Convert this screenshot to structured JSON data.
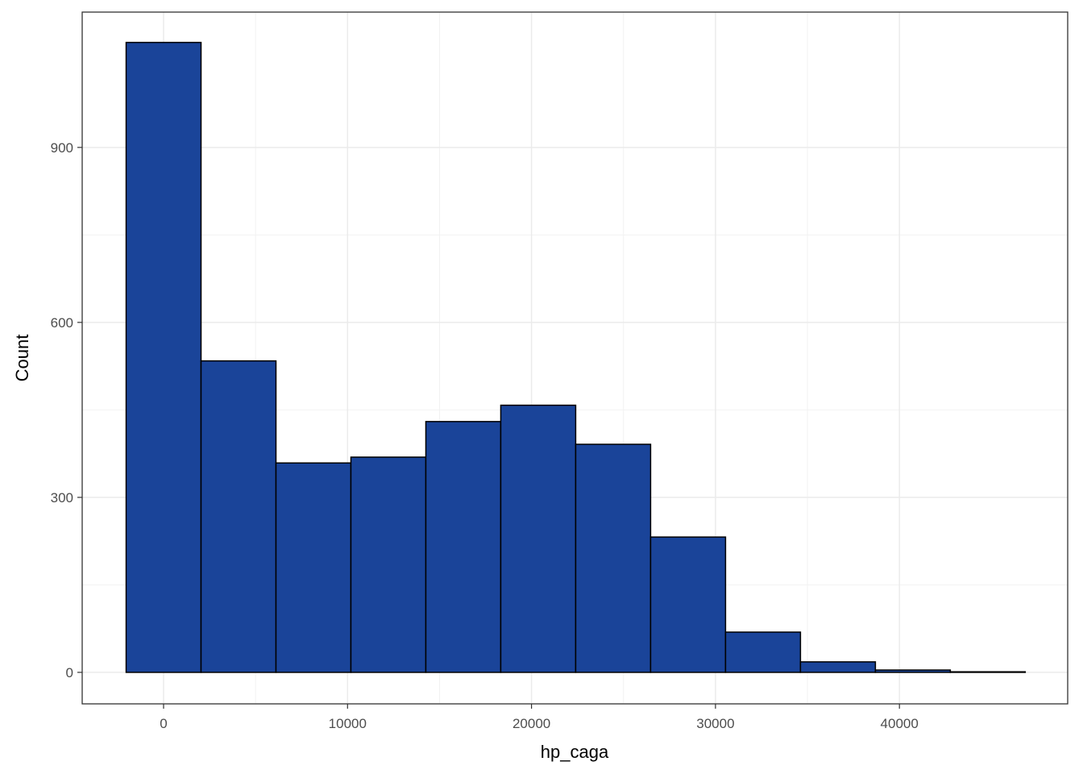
{
  "chart_data": {
    "type": "histogram",
    "x_label": "hp_caga",
    "y_label": "Count",
    "bins": [
      -2036,
      2037,
      6110,
      10183,
      14256,
      18329,
      22402,
      26475,
      30548,
      34621,
      38694,
      42767,
      46840
    ],
    "values": [
      1080,
      534,
      359,
      369,
      430,
      458,
      391,
      232,
      69,
      18,
      4,
      1
    ],
    "color": "#1a4499",
    "edge_color": "#000000",
    "xlim": [
      -4424,
      49146
    ],
    "ylim": [
      -54,
      1132
    ],
    "xticks": [
      0,
      10000,
      20000,
      30000,
      40000
    ],
    "yticks": [
      0,
      300,
      600,
      900
    ],
    "grid": true,
    "minor_grid": true
  }
}
